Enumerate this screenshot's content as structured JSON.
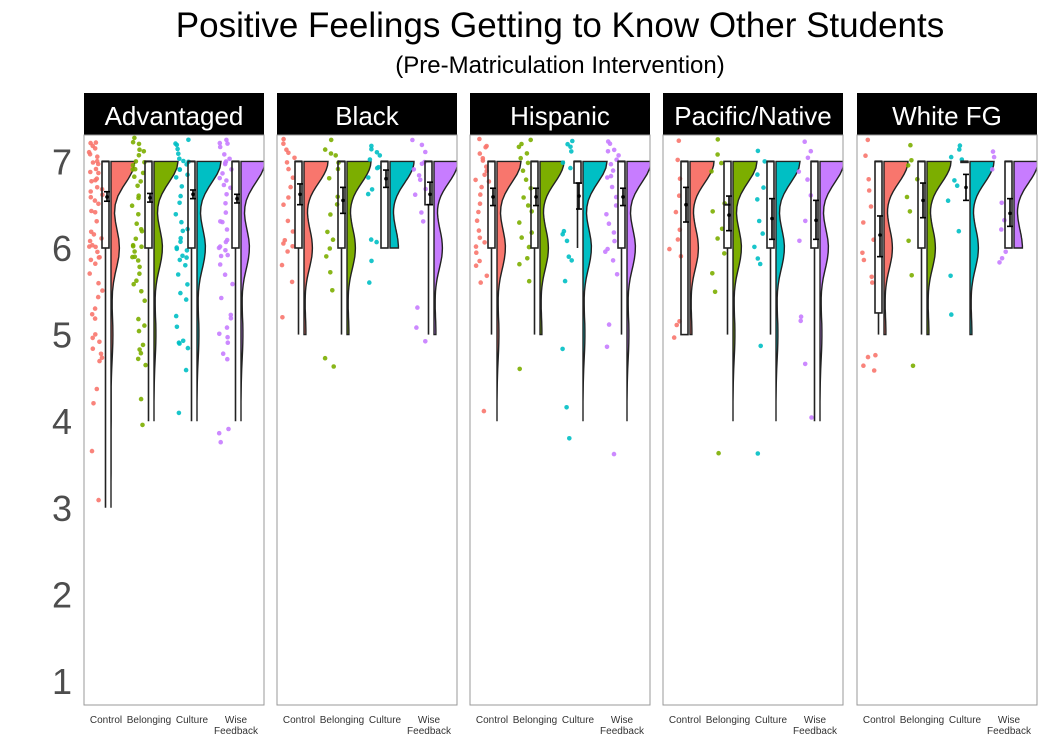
{
  "title": "Positive Feelings Getting to Know Other Students",
  "subtitle": "(Pre-Matriculation Intervention)",
  "chart_data": {
    "type": "raincloud",
    "ylim": [
      1,
      7.3
    ],
    "yticks": [
      1,
      2,
      3,
      4,
      5,
      6,
      7
    ],
    "conditions": [
      "Control",
      "Belonging",
      "Culture",
      "Wise Feedback"
    ],
    "condition_tick_labels": [
      "Control",
      "Belonging",
      "Culture",
      "Wise\nFeedback"
    ],
    "colors": {
      "Control": "#F8766D",
      "Belonging": "#7CAE00",
      "Culture": "#00BFC4",
      "Wise Feedback": "#C77CFF"
    },
    "grid": false,
    "legend": "none",
    "panels": [
      {
        "group": "Advantaged",
        "conditions": [
          {
            "name": "Control",
            "q1": 6.0,
            "median": 7.0,
            "q3": 7.0,
            "whisker_low": 3.0,
            "whisker_high": 7.0,
            "mean": 6.59,
            "ci": [
              6.54,
              6.65
            ],
            "density_min": 3.0
          },
          {
            "name": "Belonging",
            "q1": 6.0,
            "median": 7.0,
            "q3": 7.0,
            "whisker_low": 4.0,
            "whisker_high": 7.0,
            "mean": 6.58,
            "ci": [
              6.53,
              6.63
            ],
            "density_min": 4.0
          },
          {
            "name": "Culture",
            "q1": 6.0,
            "median": 7.0,
            "q3": 7.0,
            "whisker_low": 4.0,
            "whisker_high": 7.0,
            "mean": 6.62,
            "ci": [
              6.57,
              6.67
            ],
            "density_min": 4.0
          },
          {
            "name": "Wise Feedback",
            "q1": 6.0,
            "median": 7.0,
            "q3": 7.0,
            "whisker_low": 4.0,
            "whisker_high": 7.0,
            "mean": 6.57,
            "ci": [
              6.52,
              6.62
            ],
            "density_min": 4.0
          }
        ]
      },
      {
        "group": "Black",
        "conditions": [
          {
            "name": "Control",
            "q1": 6.0,
            "median": 7.0,
            "q3": 7.0,
            "whisker_low": 5.0,
            "whisker_high": 7.0,
            "mean": 6.62,
            "ci": [
              6.5,
              6.74
            ],
            "density_min": 5.0
          },
          {
            "name": "Belonging",
            "q1": 6.0,
            "median": 7.0,
            "q3": 7.0,
            "whisker_low": 5.0,
            "whisker_high": 7.0,
            "mean": 6.55,
            "ci": [
              6.4,
              6.7
            ],
            "density_min": 5.0
          },
          {
            "name": "Culture",
            "q1": 6.0,
            "median": 7.0,
            "q3": 7.0,
            "whisker_low": 6.0,
            "whisker_high": 7.0,
            "mean": 6.8,
            "ci": [
              6.7,
              6.9
            ],
            "density_min": 6.0
          },
          {
            "name": "Wise Feedback",
            "q1": 6.5,
            "median": 7.0,
            "q3": 7.0,
            "whisker_low": 5.0,
            "whisker_high": 7.0,
            "mean": 6.62,
            "ci": [
              6.5,
              6.76
            ],
            "density_min": 5.0
          }
        ]
      },
      {
        "group": "Hispanic",
        "conditions": [
          {
            "name": "Control",
            "q1": 6.0,
            "median": 7.0,
            "q3": 7.0,
            "whisker_low": 5.0,
            "whisker_high": 7.0,
            "mean": 6.59,
            "ci": [
              6.49,
              6.69
            ],
            "density_min": 4.0
          },
          {
            "name": "Belonging",
            "q1": 6.0,
            "median": 7.0,
            "q3": 7.0,
            "whisker_low": 5.0,
            "whisker_high": 7.0,
            "mean": 6.59,
            "ci": [
              6.49,
              6.69
            ],
            "density_min": 5.0
          },
          {
            "name": "Culture",
            "q1": 6.75,
            "median": 7.0,
            "q3": 7.0,
            "whisker_low": 6.0,
            "whisker_high": 7.0,
            "mean": 6.6,
            "ci": [
              6.45,
              6.75
            ],
            "density_min": 4.0
          },
          {
            "name": "Wise Feedback",
            "q1": 6.0,
            "median": 7.0,
            "q3": 7.0,
            "whisker_low": 5.0,
            "whisker_high": 7.0,
            "mean": 6.59,
            "ci": [
              6.49,
              6.69
            ],
            "density_min": 4.0
          }
        ]
      },
      {
        "group": "Pacific/Native",
        "conditions": [
          {
            "name": "Control",
            "q1": 5.0,
            "median": 7.0,
            "q3": 7.0,
            "whisker_low": 5.0,
            "whisker_high": 7.0,
            "mean": 6.5,
            "ci": [
              6.3,
              6.7
            ],
            "density_min": 5.0
          },
          {
            "name": "Belonging",
            "q1": 6.0,
            "median": 6.5,
            "q3": 7.0,
            "whisker_low": 5.0,
            "whisker_high": 7.0,
            "mean": 6.38,
            "ci": [
              6.2,
              6.6
            ],
            "density_min": 4.0
          },
          {
            "name": "Culture",
            "q1": 6.0,
            "median": 7.0,
            "q3": 7.0,
            "whisker_low": 5.0,
            "whisker_high": 7.0,
            "mean": 6.34,
            "ci": [
              6.1,
              6.57
            ],
            "density_min": 4.0
          },
          {
            "name": "Wise Feedback",
            "q1": 6.0,
            "median": 7.0,
            "q3": 7.0,
            "whisker_low": 4.0,
            "whisker_high": 7.0,
            "mean": 6.32,
            "ci": [
              6.1,
              6.55
            ],
            "density_min": 4.0
          }
        ]
      },
      {
        "group": "White FG",
        "conditions": [
          {
            "name": "Control",
            "q1": 5.25,
            "median": 7.0,
            "q3": 7.0,
            "whisker_low": 5.0,
            "whisker_high": 7.0,
            "mean": 6.15,
            "ci": [
              5.9,
              6.37
            ],
            "density_min": 5.0
          },
          {
            "name": "Belonging",
            "q1": 6.0,
            "median": 7.0,
            "q3": 7.0,
            "whisker_low": 5.0,
            "whisker_high": 7.0,
            "mean": 6.55,
            "ci": [
              6.35,
              6.75
            ],
            "density_min": 5.0
          },
          {
            "name": "Culture",
            "q1": 7.0,
            "median": 7.0,
            "q3": 7.0,
            "whisker_low": 7.0,
            "whisker_high": 7.0,
            "mean": 6.7,
            "ci": [
              6.55,
              6.85
            ],
            "density_min": 5.0
          },
          {
            "name": "Wise Feedback",
            "q1": 6.0,
            "median": 7.0,
            "q3": 7.0,
            "whisker_low": 6.0,
            "whisker_high": 7.0,
            "mean": 6.4,
            "ci": [
              6.25,
              6.57
            ],
            "density_min": 6.0
          }
        ]
      }
    ],
    "points": {
      "Advantaged": {
        "Control": [
          7.22,
          7.2,
          7.15,
          7.1,
          7.05,
          7.0,
          6.95,
          6.9,
          6.85,
          6.8,
          6.75,
          6.7,
          6.65,
          6.6,
          6.55,
          6.5,
          6.45,
          6.4,
          6.3,
          6.2,
          6.15,
          6.1,
          6.05,
          6.0,
          5.95,
          5.9,
          5.85,
          5.8,
          5.7,
          5.6,
          5.5,
          5.3,
          5.2,
          5.0,
          4.95,
          4.9,
          4.85,
          4.8,
          4.75,
          4.7,
          4.35,
          4.2,
          3.65,
          3.1,
          7.2,
          7.1,
          7.0,
          6.9,
          6.8,
          6.7,
          6.6,
          6.1,
          6.0,
          5.9,
          5.45,
          5.25
        ],
        "Belonging": [
          7.25,
          7.2,
          7.15,
          7.1,
          7.05,
          7.0,
          6.95,
          6.9,
          6.85,
          6.8,
          6.75,
          6.7,
          6.6,
          6.5,
          6.4,
          6.3,
          6.2,
          6.1,
          6.05,
          6.0,
          5.95,
          5.9,
          5.85,
          5.8,
          5.7,
          5.6,
          5.5,
          5.4,
          5.2,
          5.1,
          5.05,
          4.9,
          4.85,
          4.8,
          4.7,
          4.65,
          4.25,
          3.97,
          7.2,
          7.0,
          6.9,
          6.6,
          6.2,
          6.0,
          5.9,
          5.6
        ],
        "Culture": [
          7.25,
          7.2,
          7.15,
          7.1,
          7.05,
          7.0,
          6.95,
          6.9,
          6.85,
          6.8,
          6.7,
          6.6,
          6.5,
          6.4,
          6.3,
          6.2,
          6.1,
          6.05,
          6.0,
          5.95,
          5.9,
          5.85,
          5.8,
          5.7,
          5.6,
          5.5,
          5.4,
          5.2,
          5.1,
          4.95,
          4.9,
          4.88,
          4.85,
          4.6,
          4.1,
          7.2,
          7.0,
          6.9,
          6.2,
          6.0,
          5.9
        ],
        "Wise Feedback": [
          7.25,
          7.2,
          7.15,
          7.1,
          7.05,
          7.0,
          6.95,
          6.9,
          6.85,
          6.8,
          6.75,
          6.7,
          6.6,
          6.5,
          6.4,
          6.3,
          6.2,
          6.1,
          6.05,
          6.0,
          5.95,
          5.9,
          5.8,
          5.7,
          5.6,
          5.4,
          5.25,
          5.2,
          5.1,
          5.0,
          4.95,
          4.9,
          4.8,
          4.7,
          3.92,
          3.85,
          3.75,
          7.2,
          7.0,
          6.8,
          6.3,
          6.0,
          5.9
        ]
      },
      "Black": {
        "Control": [
          7.25,
          7.2,
          7.15,
          7.1,
          7.05,
          7.0,
          6.9,
          6.8,
          6.7,
          6.6,
          6.5,
          6.3,
          6.2,
          6.1,
          6.05,
          6.0,
          5.95,
          5.8,
          5.6,
          5.2
        ],
        "Belonging": [
          7.25,
          7.15,
          7.1,
          7.05,
          7.0,
          6.9,
          6.8,
          6.6,
          6.5,
          6.4,
          6.2,
          6.1,
          6.0,
          5.9,
          5.7,
          5.5,
          4.75,
          4.62
        ],
        "Culture": [
          7.2,
          7.15,
          7.1,
          7.05,
          7.0,
          6.95,
          6.9,
          6.8,
          6.7,
          6.6,
          6.1,
          6.05,
          5.85,
          5.6
        ],
        "Wise Feedback": [
          7.25,
          7.2,
          7.1,
          7.0,
          6.95,
          6.9,
          6.85,
          6.8,
          6.7,
          6.6,
          6.4,
          6.3,
          5.3,
          5.1,
          4.9
        ]
      },
      "Hispanic": {
        "Control": [
          7.25,
          7.2,
          7.15,
          7.1,
          7.05,
          7.0,
          6.95,
          6.9,
          6.85,
          6.8,
          6.75,
          6.7,
          6.6,
          6.5,
          6.4,
          6.3,
          6.2,
          6.1,
          6.05,
          6.0,
          5.95,
          5.85,
          5.8,
          5.7,
          5.6,
          4.1
        ],
        "Belonging": [
          7.25,
          7.2,
          7.15,
          7.1,
          7.05,
          7.0,
          6.9,
          6.8,
          6.7,
          6.6,
          6.5,
          6.4,
          6.3,
          6.2,
          6.1,
          6.0,
          5.9,
          5.8,
          5.6,
          4.62
        ],
        "Culture": [
          7.25,
          7.2,
          7.15,
          7.1,
          7.0,
          6.9,
          6.2,
          6.15,
          6.1,
          5.9,
          5.85,
          5.6,
          4.82,
          4.15,
          3.78
        ],
        "Wise Feedback": [
          7.25,
          7.2,
          7.15,
          7.1,
          7.05,
          7.0,
          6.95,
          6.9,
          6.85,
          6.8,
          6.7,
          6.6,
          6.5,
          6.4,
          6.3,
          6.2,
          6.1,
          6.0,
          5.95,
          5.85,
          5.7,
          5.1,
          4.85,
          3.63
        ]
      },
      "Pacific/Native": {
        "Control": [
          7.25,
          7.0,
          6.8,
          6.6,
          6.4,
          6.2,
          6.1,
          6.0,
          5.9,
          5.15,
          5.1,
          4.95
        ],
        "Belonging": [
          7.25,
          7.1,
          7.0,
          6.9,
          6.5,
          6.4,
          6.2,
          6.1,
          5.95,
          5.7,
          5.5,
          3.63
        ],
        "Culture": [
          7.1,
          7.0,
          6.85,
          6.7,
          6.55,
          6.3,
          6.15,
          6.0,
          5.9,
          5.8,
          4.88,
          3.65
        ],
        "Wise Feedback": [
          7.25,
          7.1,
          7.05,
          6.9,
          6.8,
          6.6,
          6.3,
          6.1,
          5.2,
          5.15,
          4.68,
          4.02
        ]
      },
      "White FG": {
        "Control": [
          7.25,
          7.05,
          6.8,
          6.65,
          6.5,
          6.3,
          6.1,
          5.95,
          5.85,
          5.65,
          5.6,
          4.78,
          4.72,
          4.66,
          4.6
        ],
        "Belonging": [
          7.2,
          7.0,
          6.95,
          6.8,
          6.6,
          6.4,
          6.1,
          5.7,
          4.66
        ],
        "Culture": [
          7.2,
          7.15,
          7.05,
          7.0,
          6.8,
          6.7,
          6.55,
          6.2,
          5.7,
          5.25
        ],
        "Wise Feedback": [
          7.1,
          7.05,
          6.9,
          6.5,
          6.3,
          6.2,
          5.95,
          5.9,
          5.85
        ]
      }
    }
  }
}
